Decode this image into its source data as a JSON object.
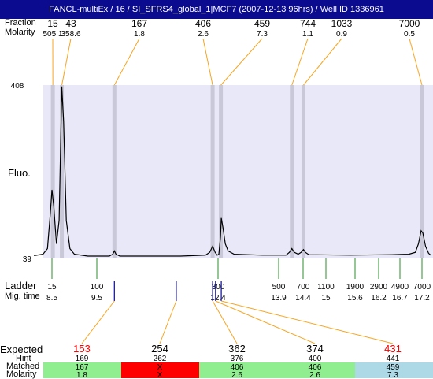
{
  "title": "FANCL-multiEx / 16 / SI_SFRS4_global_1|MCF7 (2007-12-13 96hrs) / Well ID 1336961",
  "row_labels": {
    "fraction": "Fraction",
    "molarity": "Molarity",
    "fluo": "Fluo.",
    "ladder": "Ladder",
    "mig_time": "Mig. time",
    "expected": "Expected",
    "hint": "Hint",
    "matched": "Matched",
    "molarity_bottom": "Molarity"
  },
  "colors": {
    "title_bg": "#0b0b8f",
    "plot_bg": "#e8e8f8",
    "peak_band": "#c8c8d8",
    "connector": "#f5a623",
    "ladder_tick": "#2e8b2e",
    "marker_tick": "#1a1aa0",
    "expected_red": "#ff0000",
    "cell_green": "#90ee90",
    "cell_red": "#ff0000",
    "cell_blue": "#add8e6"
  },
  "chart_data": {
    "type": "line",
    "xlabel": "",
    "ylabel": "Fluo.",
    "y_ticks": [
      "408",
      "39"
    ],
    "ylim": [
      39,
      408
    ],
    "peaks": [
      {
        "size": "15",
        "molarity": "505.1",
        "mig_time": 8.52
      },
      {
        "size": "43",
        "molarity": "358.6",
        "mig_time": 8.72
      },
      {
        "size": "167",
        "molarity": "1.8",
        "mig_time": 9.92
      },
      {
        "size": "406",
        "molarity": "2.6",
        "mig_time": 12.27
      },
      {
        "size": "459",
        "molarity": "7.3",
        "mig_time": 12.47
      },
      {
        "size": "744",
        "molarity": "1.1",
        "mig_time": 14.17
      },
      {
        "size": "1033",
        "molarity": "0.9",
        "mig_time": 14.41
      },
      {
        "size": "7000",
        "molarity": "0.5",
        "mig_time": 17.2
      }
    ],
    "ladder": [
      {
        "size": "15",
        "time": "8.5",
        "t": 8.5
      },
      {
        "size": "100",
        "time": "9.5",
        "t": 9.5
      },
      {
        "size": "300",
        "time": "12.4",
        "t": 12.4
      },
      {
        "size": "500",
        "time": "13.9",
        "t": 13.9
      },
      {
        "size": "700",
        "time": "14.4",
        "t": 14.4
      },
      {
        "size": "1100",
        "time": "15",
        "t": 15
      },
      {
        "size": "1900",
        "time": "15.6",
        "t": 15.6
      },
      {
        "size": "2900",
        "time": "16.2",
        "t": 16.2
      },
      {
        "size": "4900",
        "time": "16.7",
        "t": 16.7
      },
      {
        "size": "7000",
        "time": "17.2",
        "t": 17.2
      }
    ],
    "trace": [
      [
        8.1,
        45
      ],
      [
        8.3,
        48
      ],
      [
        8.4,
        60
      ],
      [
        8.46,
        130
      ],
      [
        8.5,
        185
      ],
      [
        8.54,
        150
      ],
      [
        8.6,
        70
      ],
      [
        8.66,
        120
      ],
      [
        8.72,
        405
      ],
      [
        8.76,
        330
      ],
      [
        8.82,
        120
      ],
      [
        8.9,
        60
      ],
      [
        9.0,
        48
      ],
      [
        9.3,
        44
      ],
      [
        9.8,
        44
      ],
      [
        9.88,
        48
      ],
      [
        9.92,
        55
      ],
      [
        9.96,
        48
      ],
      [
        10.05,
        44
      ],
      [
        11.5,
        44
      ],
      [
        12.1,
        46
      ],
      [
        12.2,
        52
      ],
      [
        12.27,
        65
      ],
      [
        12.33,
        52
      ],
      [
        12.38,
        46
      ],
      [
        12.42,
        48
      ],
      [
        12.46,
        85
      ],
      [
        12.48,
        125
      ],
      [
        12.52,
        105
      ],
      [
        12.58,
        70
      ],
      [
        12.65,
        55
      ],
      [
        12.8,
        48
      ],
      [
        13.5,
        46
      ],
      [
        14.05,
        46
      ],
      [
        14.12,
        52
      ],
      [
        14.17,
        60
      ],
      [
        14.22,
        52
      ],
      [
        14.3,
        48
      ],
      [
        14.36,
        52
      ],
      [
        14.41,
        58
      ],
      [
        14.46,
        52
      ],
      [
        14.55,
        47
      ],
      [
        15.5,
        46
      ],
      [
        16.5,
        47
      ],
      [
        16.9,
        48
      ],
      [
        17.05,
        52
      ],
      [
        17.12,
        70
      ],
      [
        17.18,
        98
      ],
      [
        17.22,
        93
      ],
      [
        17.28,
        65
      ],
      [
        17.35,
        50
      ],
      [
        17.4,
        46
      ]
    ],
    "markers": [
      {
        "expected": "153",
        "expected_red": true,
        "hint": "169",
        "matched": "167",
        "molarity": "1.8",
        "cell": "green",
        "t": 9.92
      },
      {
        "expected": "254",
        "expected_red": false,
        "hint": "262",
        "matched": "X",
        "molarity": "X",
        "cell": "red",
        "t": 11.4
      },
      {
        "expected": "362",
        "expected_red": false,
        "hint": "376",
        "matched": "406",
        "molarity": "2.6",
        "cell": "green",
        "t": 12.27
      },
      {
        "expected": "374",
        "expected_red": false,
        "hint": "400",
        "matched": "406",
        "molarity": "2.6",
        "cell": "green",
        "t": 12.34
      },
      {
        "expected": "431",
        "expected_red": true,
        "hint": "441",
        "matched": "459",
        "molarity": "7.3",
        "cell": "blue",
        "t": 12.48
      }
    ]
  }
}
